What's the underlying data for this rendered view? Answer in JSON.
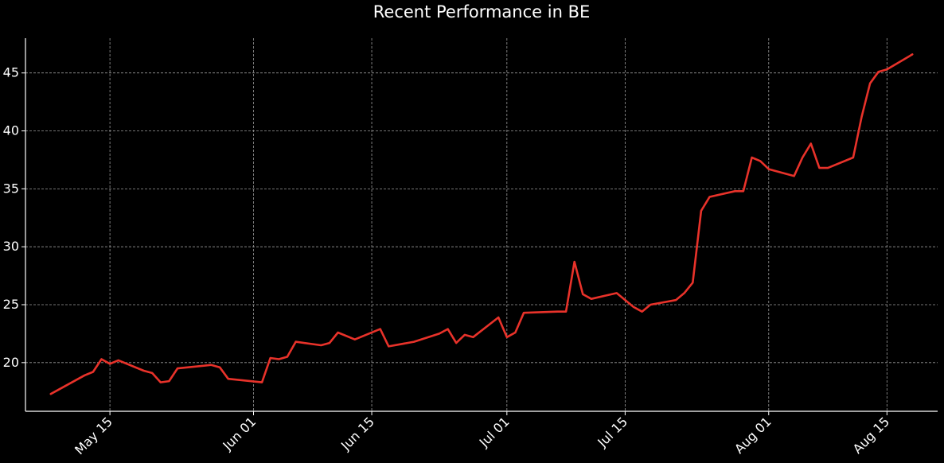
{
  "chart_data": {
    "type": "line",
    "title": "Recent Performance in BE",
    "xlabel": "",
    "ylabel": "",
    "x_start": "2024-05-08",
    "xlim": [
      "2024-05-05",
      "2024-08-21"
    ],
    "ylim": [
      15.8,
      48
    ],
    "grid": true,
    "x_ticks": [
      {
        "date": "2024-05-15",
        "label": "May 15"
      },
      {
        "date": "2024-06-01",
        "label": "Jun 01"
      },
      {
        "date": "2024-06-15",
        "label": "Jun 15"
      },
      {
        "date": "2024-07-01",
        "label": "Jul 01"
      },
      {
        "date": "2024-07-15",
        "label": "Jul 15"
      },
      {
        "date": "2024-08-01",
        "label": "Aug 01"
      },
      {
        "date": "2024-08-15",
        "label": "Aug 15"
      }
    ],
    "y_ticks": [
      20,
      25,
      30,
      35,
      40,
      45
    ],
    "series": [
      {
        "color": "#e8322a",
        "points": [
          [
            "2024-05-08",
            17.3
          ],
          [
            "2024-05-12",
            18.9
          ],
          [
            "2024-05-13",
            19.2
          ],
          [
            "2024-05-14",
            20.3
          ],
          [
            "2024-05-15",
            19.9
          ],
          [
            "2024-05-16",
            20.2
          ],
          [
            "2024-05-19",
            19.3
          ],
          [
            "2024-05-20",
            19.1
          ],
          [
            "2024-05-21",
            18.3
          ],
          [
            "2024-05-22",
            18.4
          ],
          [
            "2024-05-23",
            19.5
          ],
          [
            "2024-05-27",
            19.8
          ],
          [
            "2024-05-28",
            19.6
          ],
          [
            "2024-05-29",
            18.6
          ],
          [
            "2024-06-02",
            18.3
          ],
          [
            "2024-06-03",
            20.4
          ],
          [
            "2024-06-04",
            20.3
          ],
          [
            "2024-06-05",
            20.5
          ],
          [
            "2024-06-06",
            21.8
          ],
          [
            "2024-06-09",
            21.5
          ],
          [
            "2024-06-10",
            21.7
          ],
          [
            "2024-06-11",
            22.6
          ],
          [
            "2024-06-13",
            22.0
          ],
          [
            "2024-06-16",
            22.9
          ],
          [
            "2024-06-17",
            21.4
          ],
          [
            "2024-06-20",
            21.8
          ],
          [
            "2024-06-23",
            22.5
          ],
          [
            "2024-06-24",
            22.9
          ],
          [
            "2024-06-25",
            21.7
          ],
          [
            "2024-06-26",
            22.4
          ],
          [
            "2024-06-27",
            22.2
          ],
          [
            "2024-06-30",
            23.9
          ],
          [
            "2024-07-01",
            22.2
          ],
          [
            "2024-07-02",
            22.6
          ],
          [
            "2024-07-03",
            24.3
          ],
          [
            "2024-07-07",
            24.4
          ],
          [
            "2024-07-08",
            24.4
          ],
          [
            "2024-07-09",
            28.7
          ],
          [
            "2024-07-10",
            25.9
          ],
          [
            "2024-07-11",
            25.5
          ],
          [
            "2024-07-14",
            26.0
          ],
          [
            "2024-07-16",
            24.8
          ],
          [
            "2024-07-17",
            24.4
          ],
          [
            "2024-07-18",
            25.0
          ],
          [
            "2024-07-21",
            25.4
          ],
          [
            "2024-07-22",
            26.0
          ],
          [
            "2024-07-23",
            26.9
          ],
          [
            "2024-07-24",
            33.1
          ],
          [
            "2024-07-25",
            34.3
          ],
          [
            "2024-07-28",
            34.8
          ],
          [
            "2024-07-29",
            34.8
          ],
          [
            "2024-07-30",
            37.7
          ],
          [
            "2024-07-31",
            37.4
          ],
          [
            "2024-08-01",
            36.7
          ],
          [
            "2024-08-04",
            36.1
          ],
          [
            "2024-08-05",
            37.7
          ],
          [
            "2024-08-06",
            38.9
          ],
          [
            "2024-08-07",
            36.8
          ],
          [
            "2024-08-08",
            36.8
          ],
          [
            "2024-08-11",
            37.7
          ],
          [
            "2024-08-12",
            41.2
          ],
          [
            "2024-08-13",
            44.1
          ],
          [
            "2024-08-14",
            45.1
          ],
          [
            "2024-08-15",
            45.3
          ],
          [
            "2024-08-18",
            46.6
          ]
        ]
      }
    ]
  }
}
